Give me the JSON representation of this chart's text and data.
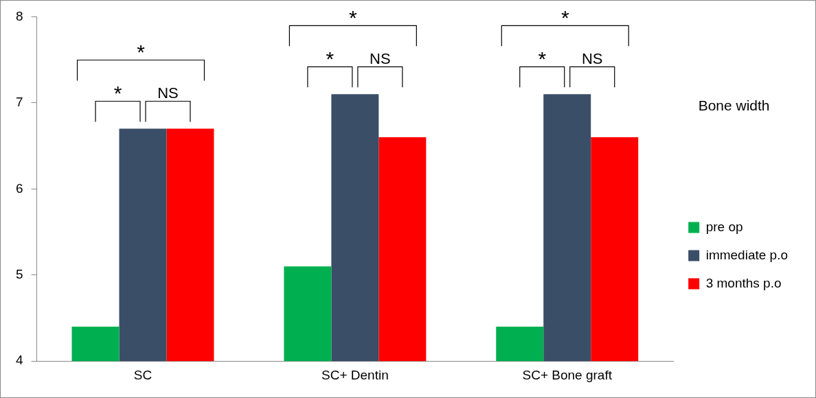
{
  "chart_data": {
    "type": "bar",
    "legend_title": "Bone width",
    "categories": [
      "SC",
      "SC+ Dentin",
      "SC+ Bone graft"
    ],
    "series": [
      {
        "name": "pre op",
        "color": "#00b050",
        "values": [
          4.4,
          5.1,
          4.4
        ]
      },
      {
        "name": "immediate p.o",
        "color": "#3b4e68",
        "values": [
          6.7,
          7.1,
          7.1
        ]
      },
      {
        "name": "3 months p.o",
        "color": "#ff0000",
        "values": [
          6.7,
          6.6,
          6.6
        ]
      }
    ],
    "ylim": [
      4,
      8
    ],
    "yticks": [
      4,
      5,
      6,
      7,
      8
    ],
    "grid": false,
    "legend": "right",
    "annotations": [
      "*",
      "*",
      "NS",
      "*",
      "*",
      "NS",
      "*",
      "*",
      "NS"
    ]
  }
}
